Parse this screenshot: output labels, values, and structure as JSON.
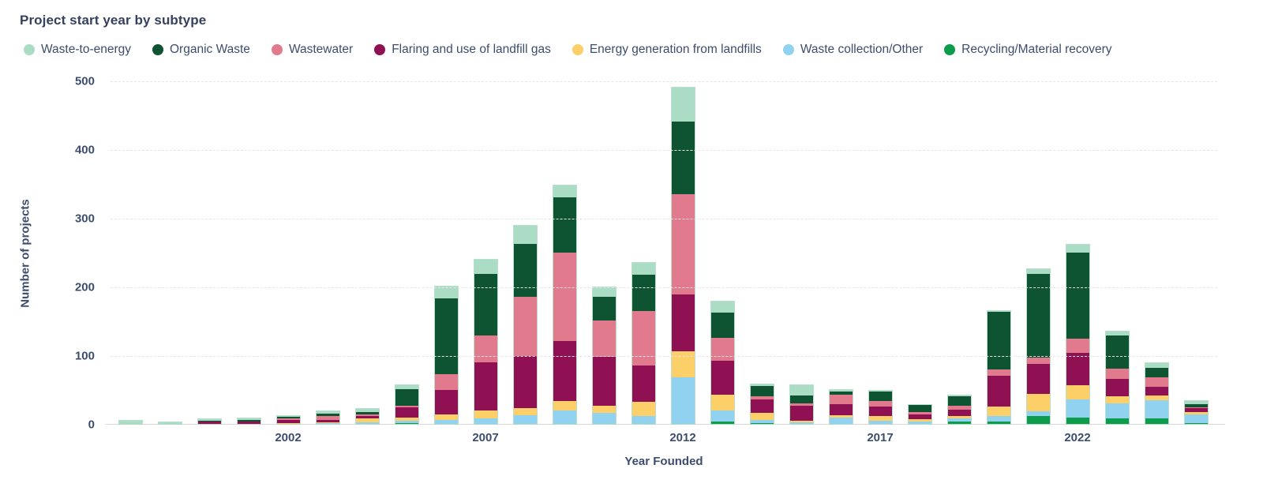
{
  "title": "Project start year by subtype",
  "colors": {
    "text": "#3d4d6e",
    "title_text": "#36415f",
    "gridline": "#e6e6e6",
    "axis_line": "#d8d8d8",
    "bar_outline": "#abd9c2"
  },
  "legend": [
    {
      "label": "Waste-to-energy",
      "color": "#abdcc6"
    },
    {
      "label": "Organic Waste",
      "color": "#0e5433"
    },
    {
      "label": "Wastewater",
      "color": "#e07a8c"
    },
    {
      "label": "Flaring and use of landfill gas",
      "color": "#8f1053"
    },
    {
      "label": "Energy generation from landfills",
      "color": "#fccf68"
    },
    {
      "label": "Waste collection/Other",
      "color": "#90d2f0"
    },
    {
      "label": "Recycling/Material recovery",
      "color": "#0d9b4c"
    }
  ],
  "chart_data": {
    "type": "bar",
    "stacked": true,
    "title": "Project start year by subtype",
    "xlabel": "Year Founded",
    "ylabel": "Number of projects",
    "ylim": [
      0,
      500
    ],
    "yticks": [
      0,
      100,
      200,
      300,
      400,
      500
    ],
    "x": [
      1998,
      1999,
      2000,
      2001,
      2002,
      2003,
      2004,
      2005,
      2006,
      2007,
      2008,
      2009,
      2010,
      2011,
      2012,
      2013,
      2014,
      2015,
      2016,
      2017,
      2018,
      2019,
      2020,
      2021,
      2022,
      2023,
      2024,
      2025
    ],
    "xticks": [
      2002,
      2007,
      2012,
      2017,
      2022
    ],
    "grid": "horizontal-dashed",
    "legend_position": "top",
    "series": [
      {
        "name": "Recycling/Material recovery",
        "color": "#0d9b4c",
        "values": [
          0,
          0,
          0,
          0,
          0,
          0,
          0,
          1,
          0,
          0,
          0,
          0,
          0,
          0,
          0,
          3,
          1,
          0,
          0,
          0,
          0,
          3,
          4,
          12,
          9,
          8,
          8,
          1
        ]
      },
      {
        "name": "Waste collection/Other",
        "color": "#90d2f0",
        "values": [
          0,
          0,
          0,
          0,
          0,
          1,
          2,
          4,
          6,
          8,
          13,
          19,
          16,
          12,
          68,
          17,
          5,
          2,
          9,
          5,
          3,
          5,
          8,
          6,
          27,
          22,
          27,
          13
        ]
      },
      {
        "name": "Energy generation from landfills",
        "color": "#fccf68",
        "values": [
          0,
          0,
          0,
          0,
          1,
          1,
          6,
          4,
          8,
          11,
          10,
          14,
          11,
          20,
          38,
          22,
          10,
          3,
          4,
          6,
          4,
          3,
          13,
          26,
          20,
          10,
          6,
          3
        ]
      },
      {
        "name": "Flaring and use of landfill gas",
        "color": "#8f1053",
        "values": [
          0,
          0,
          3,
          3,
          5,
          4,
          4,
          15,
          36,
          71,
          76,
          88,
          71,
          53,
          83,
          50,
          20,
          21,
          16,
          14,
          7,
          10,
          45,
          43,
          47,
          26,
          13,
          6
        ]
      },
      {
        "name": "Wastewater",
        "color": "#e07a8c",
        "values": [
          0,
          0,
          0,
          1,
          2,
          5,
          2,
          2,
          22,
          39,
          86,
          129,
          53,
          79,
          145,
          33,
          4,
          4,
          14,
          8,
          3,
          6,
          9,
          10,
          21,
          14,
          14,
          1
        ]
      },
      {
        "name": "Organic Waste",
        "color": "#0e5433",
        "values": [
          0,
          0,
          2,
          2,
          2,
          4,
          3,
          25,
          111,
          90,
          77,
          80,
          34,
          53,
          106,
          37,
          15,
          11,
          4,
          14,
          11,
          13,
          84,
          122,
          126,
          49,
          14,
          5
        ]
      },
      {
        "name": "Waste-to-energy",
        "color": "#abdcc6",
        "values": [
          5,
          2,
          2,
          2,
          2,
          4,
          5,
          5,
          17,
          20,
          27,
          17,
          14,
          17,
          50,
          16,
          3,
          15,
          3,
          1,
          0,
          2,
          2,
          6,
          11,
          6,
          7,
          4
        ]
      }
    ]
  }
}
